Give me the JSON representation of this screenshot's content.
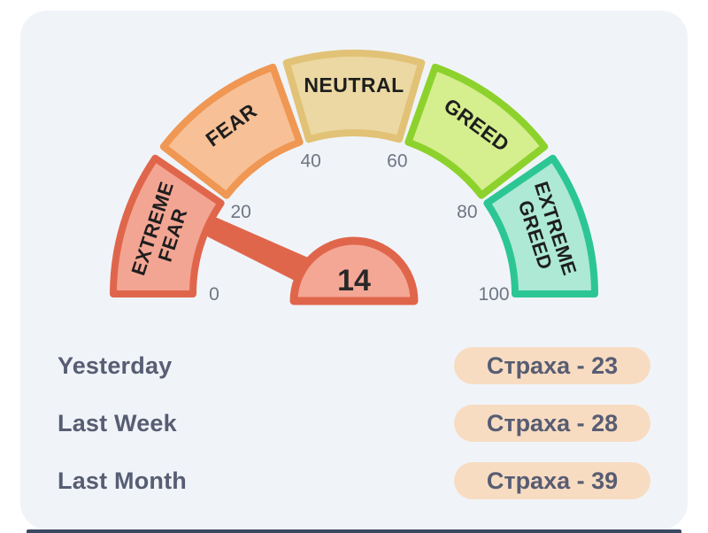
{
  "chart_data": {
    "type": "gauge",
    "value": 14,
    "min": 0,
    "max": 100,
    "ticks": [
      0,
      20,
      40,
      60,
      80,
      100
    ],
    "segments": [
      {
        "name": "extreme-fear",
        "label": [
          "EXTREME",
          "FEAR"
        ],
        "from": 0,
        "to": 20,
        "fill": "#F3A593",
        "stroke": "#E0664B"
      },
      {
        "name": "fear",
        "label": [
          "FEAR"
        ],
        "from": 20,
        "to": 40,
        "fill": "#F7C096",
        "stroke": "#EF9753"
      },
      {
        "name": "neutral",
        "label": [
          "NEUTRAL"
        ],
        "from": 40,
        "to": 60,
        "fill": "#EBD8A3",
        "stroke": "#E2C276"
      },
      {
        "name": "greed",
        "label": [
          "GREED"
        ],
        "from": 60,
        "to": 80,
        "fill": "#D5EE8E",
        "stroke": "#8DD22C"
      },
      {
        "name": "extreme-greed",
        "label": [
          "EXTREME",
          "GREED"
        ],
        "from": 80,
        "to": 100,
        "fill": "#ADE9D5",
        "stroke": "#2CC694"
      }
    ],
    "needle_color": "#E0664B",
    "hub_fill": "#F4A795",
    "hub_stroke": "#E0664B",
    "hub_value_color": "#282828",
    "tick_color": "#6F7582",
    "segment_label_color": "#1E1E1E"
  },
  "history": {
    "rows": [
      {
        "label": "Yesterday",
        "value_text": "Страха - 23"
      },
      {
        "label": "Last Week",
        "value_text": "Страха - 28"
      },
      {
        "label": "Last Month",
        "value_text": "Страха - 39"
      }
    ],
    "badge_bg": "#F8DCC2",
    "text_color": "#575D72"
  },
  "theme": {
    "page_bg": "#FFFFFF",
    "card_bg": "#F0F4F9",
    "bottom_bar": "#3A4862"
  }
}
